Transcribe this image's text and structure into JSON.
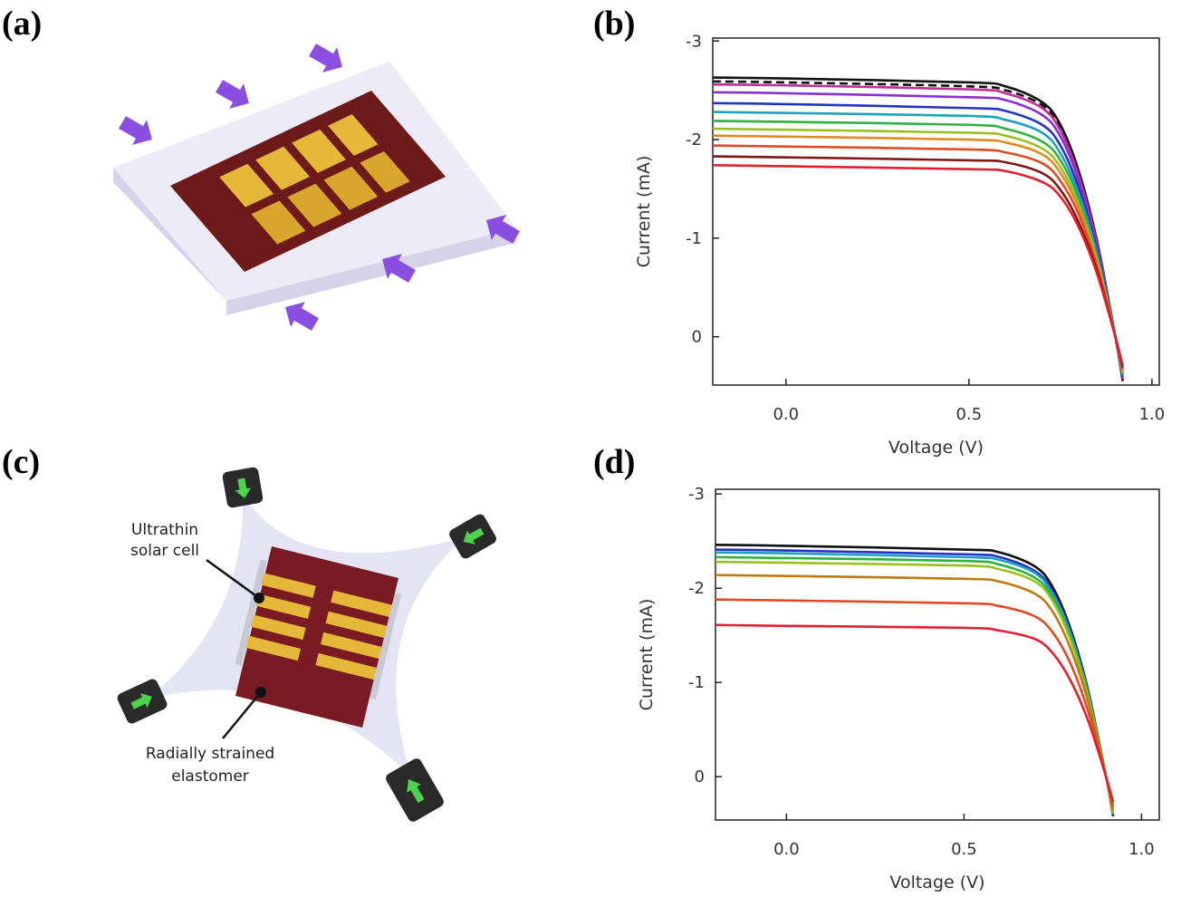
{
  "panels": {
    "a": {
      "label": "(a)"
    },
    "c": {
      "label": "(c)",
      "cell_label": [
        "Ultrathin",
        "solar cell"
      ],
      "elastomer_label": [
        "Radially strained",
        "elastomer"
      ]
    }
  },
  "chart_data": [
    {
      "type": "line",
      "panel_label": "(b)",
      "x_label": "Voltage (V)",
      "y_label": "Current (mA)",
      "xlim": [
        -0.2,
        1.02
      ],
      "ylim": [
        0.49,
        -3.03
      ],
      "xticks": [
        {
          "value": 0,
          "label": "0.0"
        },
        {
          "value": 0.5,
          "label": "0.5"
        },
        {
          "value": 1,
          "label": "1.0"
        }
      ],
      "yticks": [
        -3,
        -2,
        -1,
        0
      ],
      "x": [
        -0.2,
        0,
        0.5,
        0.6,
        0.7,
        0.75,
        0.8,
        0.85,
        0.9,
        0.92
      ],
      "series": [
        {
          "color": "#111111",
          "values": [
            -2.63,
            -2.62,
            -2.58,
            -2.54,
            -2.38,
            -2.15,
            -1.68,
            -0.97,
            0,
            0.45
          ]
        },
        {
          "color": "#111111",
          "dash": true,
          "values": [
            -2.59,
            -2.58,
            -2.54,
            -2.5,
            -2.35,
            -2.12,
            -1.65,
            -0.95,
            0,
            0.44
          ]
        },
        {
          "color": "#c0309a",
          "values": [
            -2.56,
            -2.55,
            -2.51,
            -2.47,
            -2.32,
            -2.09,
            -1.63,
            -0.94,
            0,
            0.43
          ]
        },
        {
          "color": "#8a2fd0",
          "values": [
            -2.48,
            -2.47,
            -2.43,
            -2.4,
            -2.25,
            -2.03,
            -1.58,
            -0.91,
            0,
            0.42
          ]
        },
        {
          "color": "#2233c0",
          "values": [
            -2.37,
            -2.36,
            -2.32,
            -2.29,
            -2.15,
            -1.94,
            -1.51,
            -0.87,
            0,
            0.4
          ]
        },
        {
          "color": "#20a0c0",
          "values": [
            -2.28,
            -2.27,
            -2.24,
            -2.2,
            -2.07,
            -1.86,
            -1.45,
            -0.84,
            0,
            0.39
          ]
        },
        {
          "color": "#30b040",
          "values": [
            -2.19,
            -2.18,
            -2.15,
            -2.11,
            -1.98,
            -1.79,
            -1.4,
            -0.81,
            0,
            0.37
          ]
        },
        {
          "color": "#9ac020",
          "values": [
            -2.11,
            -2.1,
            -2.07,
            -2.04,
            -1.91,
            -1.72,
            -1.34,
            -0.78,
            0,
            0.36
          ]
        },
        {
          "color": "#e08a20",
          "values": [
            -2.04,
            -2.03,
            -2,
            -1.97,
            -1.85,
            -1.66,
            -1.3,
            -0.75,
            0,
            0.35
          ]
        },
        {
          "color": "#e04a20",
          "values": [
            -1.94,
            -1.93,
            -1.9,
            -1.87,
            -1.76,
            -1.58,
            -1.24,
            -0.71,
            0,
            0.33
          ]
        },
        {
          "color": "#801515",
          "values": [
            -1.83,
            -1.82,
            -1.79,
            -1.77,
            -1.66,
            -1.49,
            -1.16,
            -0.67,
            0,
            0.31
          ]
        },
        {
          "color": "#e02030",
          "values": [
            -1.74,
            -1.73,
            -1.7,
            -1.68,
            -1.57,
            -1.42,
            -1.11,
            -0.64,
            0,
            0.29
          ]
        }
      ]
    },
    {
      "type": "line",
      "panel_label": "(d)",
      "x_label": "Voltage (V)",
      "y_label": "Current (mA)",
      "xlim": [
        -0.2,
        1.05
      ],
      "ylim": [
        0.46,
        -3.05
      ],
      "xticks": [
        {
          "value": 0,
          "label": "0.0"
        },
        {
          "value": 0.5,
          "label": "0.5"
        },
        {
          "value": 1,
          "label": "1.0"
        }
      ],
      "yticks": [
        -3,
        -2,
        -1,
        0
      ],
      "x": [
        -0.2,
        0,
        0.5,
        0.6,
        0.7,
        0.75,
        0.8,
        0.85,
        0.9,
        0.92
      ],
      "series": [
        {
          "color": "#111111",
          "values": [
            -2.46,
            -2.45,
            -2.41,
            -2.38,
            -2.23,
            -2.01,
            -1.57,
            -0.91,
            0,
            0.42
          ]
        },
        {
          "color": "#2233c0",
          "values": [
            -2.41,
            -2.4,
            -2.36,
            -2.33,
            -2.18,
            -1.97,
            -1.54,
            -0.89,
            0,
            0.41
          ]
        },
        {
          "color": "#20a0c0",
          "values": [
            -2.38,
            -2.37,
            -2.33,
            -2.3,
            -2.16,
            -1.94,
            -1.52,
            -0.88,
            0,
            0.4
          ]
        },
        {
          "color": "#30b040",
          "values": [
            -2.33,
            -2.32,
            -2.29,
            -2.25,
            -2.11,
            -1.9,
            -1.48,
            -0.86,
            0,
            0.39
          ]
        },
        {
          "color": "#9ac020",
          "values": [
            -2.28,
            -2.27,
            -2.24,
            -2.2,
            -2.07,
            -1.86,
            -1.45,
            -0.84,
            0,
            0.39
          ]
        },
        {
          "color": "#c07810",
          "values": [
            -2.14,
            -2.13,
            -2.1,
            -2.07,
            -1.94,
            -1.75,
            -1.36,
            -0.79,
            0,
            0.36
          ]
        },
        {
          "color": "#e04a20",
          "values": [
            -1.88,
            -1.87,
            -1.84,
            -1.81,
            -1.7,
            -1.53,
            -1.2,
            -0.69,
            0,
            0.32
          ]
        },
        {
          "color": "#e02030",
          "values": [
            -1.61,
            -1.6,
            -1.58,
            -1.55,
            -1.46,
            -1.31,
            -1.02,
            -0.59,
            0,
            0.27
          ]
        }
      ]
    }
  ]
}
